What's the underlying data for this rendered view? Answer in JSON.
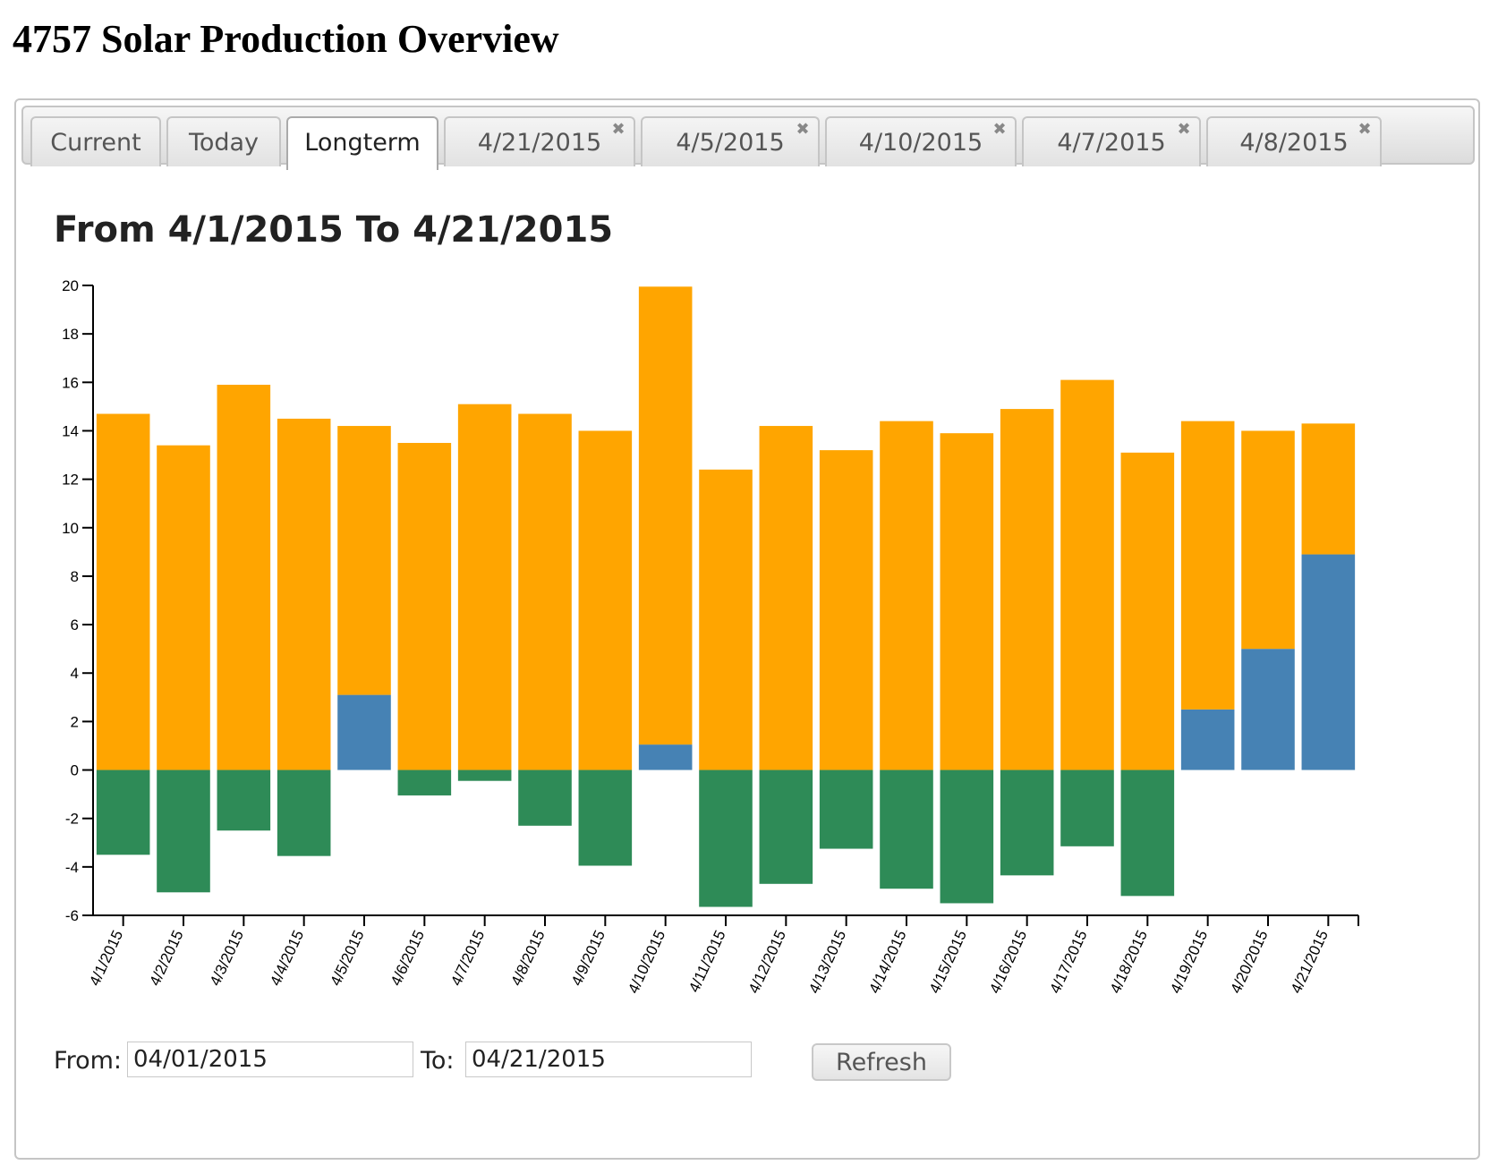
{
  "page": {
    "title": "4757 Solar Production Overview"
  },
  "tabs": [
    {
      "label": "Current",
      "closable": false,
      "active": false
    },
    {
      "label": "Today",
      "closable": false,
      "active": false
    },
    {
      "label": "Longterm",
      "closable": false,
      "active": true
    },
    {
      "label": "4/21/2015",
      "closable": true,
      "active": false
    },
    {
      "label": "4/5/2015",
      "closable": true,
      "active": false
    },
    {
      "label": "4/10/2015",
      "closable": true,
      "active": false
    },
    {
      "label": "4/7/2015",
      "closable": true,
      "active": false
    },
    {
      "label": "4/8/2015",
      "closable": true,
      "active": false
    }
  ],
  "tab_close_glyph": "✖",
  "tab_close_icon": "close-icon",
  "chart_data": {
    "type": "bar",
    "stacked": true,
    "title": "From 4/1/2015 To 4/21/2015",
    "xlabel": "",
    "ylabel": "",
    "ylim": [
      -6,
      20
    ],
    "yticks": [
      20,
      18,
      16,
      14,
      12,
      10,
      8,
      6,
      4,
      2,
      0,
      -2,
      -4,
      -6
    ],
    "grid": false,
    "legend": "none",
    "categories": [
      "4/1/2015",
      "4/2/2015",
      "4/3/2015",
      "4/4/2015",
      "4/5/2015",
      "4/6/2015",
      "4/7/2015",
      "4/8/2015",
      "4/9/2015",
      "4/10/2015",
      "4/11/2015",
      "4/12/2015",
      "4/13/2015",
      "4/14/2015",
      "4/15/2015",
      "4/16/2015",
      "4/17/2015",
      "4/18/2015",
      "4/19/2015",
      "4/20/2015",
      "4/21/2015"
    ],
    "series": [
      {
        "color": "#ffa500",
        "stack": "positive",
        "values": [
          14.7,
          13.4,
          15.9,
          14.5,
          11.1,
          13.5,
          15.1,
          14.7,
          14.0,
          18.9,
          12.4,
          14.2,
          13.2,
          14.4,
          13.9,
          14.9,
          16.1,
          13.1,
          11.9,
          9.0,
          5.4
        ]
      },
      {
        "color": "#4682b4",
        "stack": "positive-base",
        "values": [
          0,
          0,
          0,
          0,
          3.1,
          0,
          0,
          0,
          0,
          1.05,
          0,
          0,
          0,
          0,
          0,
          0,
          0,
          0,
          2.5,
          5.0,
          8.9
        ]
      },
      {
        "color": "#2e8b57",
        "stack": "negative",
        "values": [
          -3.5,
          -5.05,
          -2.5,
          -3.55,
          0,
          -1.05,
          -0.45,
          -2.3,
          -3.95,
          0,
          -5.65,
          -4.7,
          -3.25,
          -4.9,
          -5.5,
          -4.35,
          -3.15,
          -5.2,
          0,
          0,
          0
        ]
      }
    ]
  },
  "controls": {
    "from_label": "From:",
    "from_value": "04/01/2015",
    "to_label": "To:",
    "to_value": "04/21/2015",
    "refresh_label": "Refresh"
  }
}
